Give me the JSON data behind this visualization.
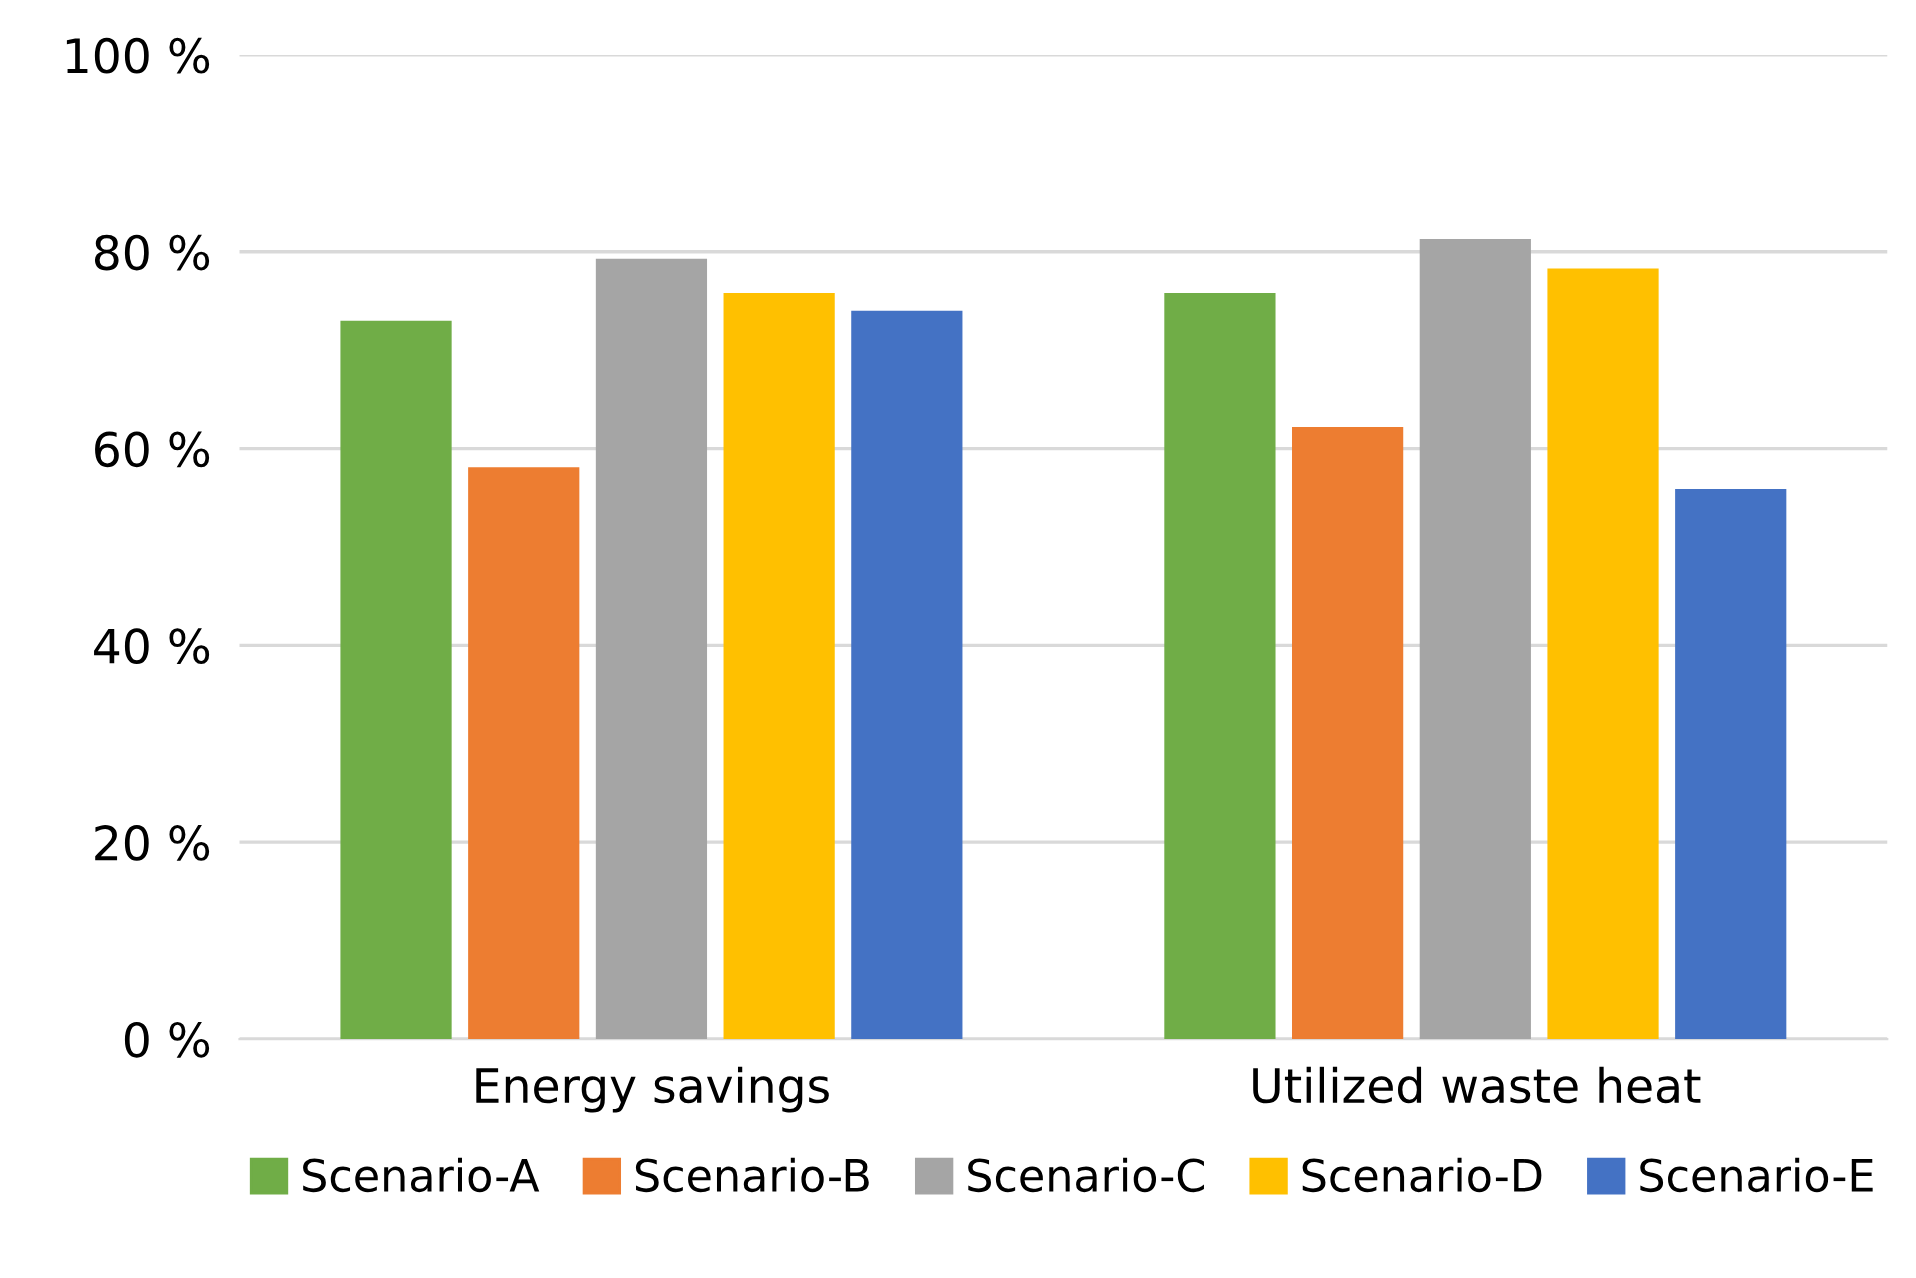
{
  "chart_data": {
    "type": "bar",
    "categories": [
      "Energy savings",
      "Utilized waste heat"
    ],
    "series": [
      {
        "name": "Scenario-A",
        "color": "#70ad47",
        "values": [
          73,
          75.8
        ]
      },
      {
        "name": "Scenario-B",
        "color": "#ed7d31",
        "values": [
          58.1,
          62.2
        ]
      },
      {
        "name": "Scenario-C",
        "color": "#a5a5a5",
        "values": [
          79.3,
          81.3
        ]
      },
      {
        "name": "Scenario-D",
        "color": "#ffc000",
        "values": [
          75.8,
          78.3
        ]
      },
      {
        "name": "Scenario-E",
        "color": "#4472c4",
        "values": [
          74,
          55.9
        ]
      }
    ],
    "ylim": [
      0,
      100
    ],
    "yticks": [
      {
        "value": 0,
        "label": "0 %"
      },
      {
        "value": 20,
        "label": "20 %"
      },
      {
        "value": 40,
        "label": "40 %"
      },
      {
        "value": 60,
        "label": "60 %"
      },
      {
        "value": 80,
        "label": "80 %"
      },
      {
        "value": 100,
        "label": "100 %"
      }
    ],
    "grid": "y",
    "legend": "bottom"
  }
}
